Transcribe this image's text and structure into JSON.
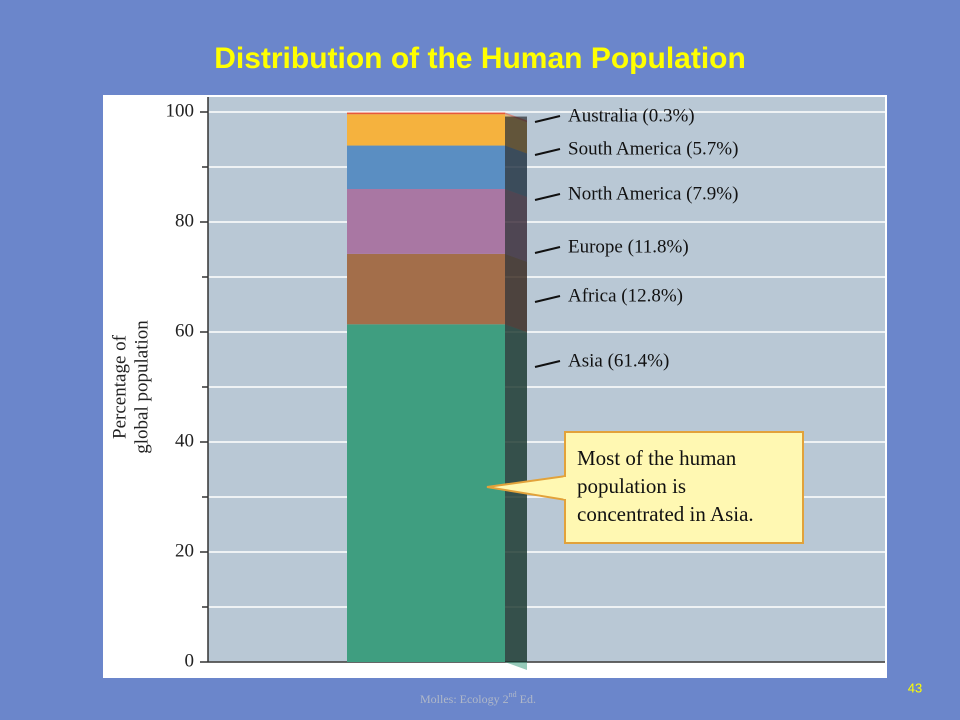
{
  "slide_title": "Distribution of the Human Population",
  "chart_data": {
    "type": "bar",
    "categories": [
      null
    ],
    "series": [
      {
        "name": "Asia (61.4%)",
        "color": "#3f9e80",
        "values": [
          61.4
        ]
      },
      {
        "name": "Africa (12.8%)",
        "color": "#a36e4a",
        "values": [
          12.8
        ]
      },
      {
        "name": "Europe (11.8%)",
        "color": "#a977a3",
        "values": [
          11.8
        ]
      },
      {
        "name": "North America (7.9%)",
        "color": "#5a8ec2",
        "values": [
          7.9
        ]
      },
      {
        "name": "South America (5.7%)",
        "color": "#f5b23e",
        "values": [
          5.7
        ]
      },
      {
        "name": "Australia (0.3%)",
        "color": "#e8583a",
        "values": [
          0.3
        ]
      }
    ],
    "ylabel": [
      "Percentage of",
      "global population"
    ],
    "ylim": [
      0,
      100
    ],
    "yticks": [
      0,
      20,
      40,
      60,
      80,
      100
    ],
    "minor_yticks": [
      10,
      30,
      50,
      70,
      90
    ],
    "grid": true,
    "annotation": [
      "Most of the human",
      "population is",
      "concentrated in Asia."
    ]
  },
  "footer": [
    "Molles: Ecology 2",
    "nd",
    " Ed."
  ],
  "page_number": "43"
}
